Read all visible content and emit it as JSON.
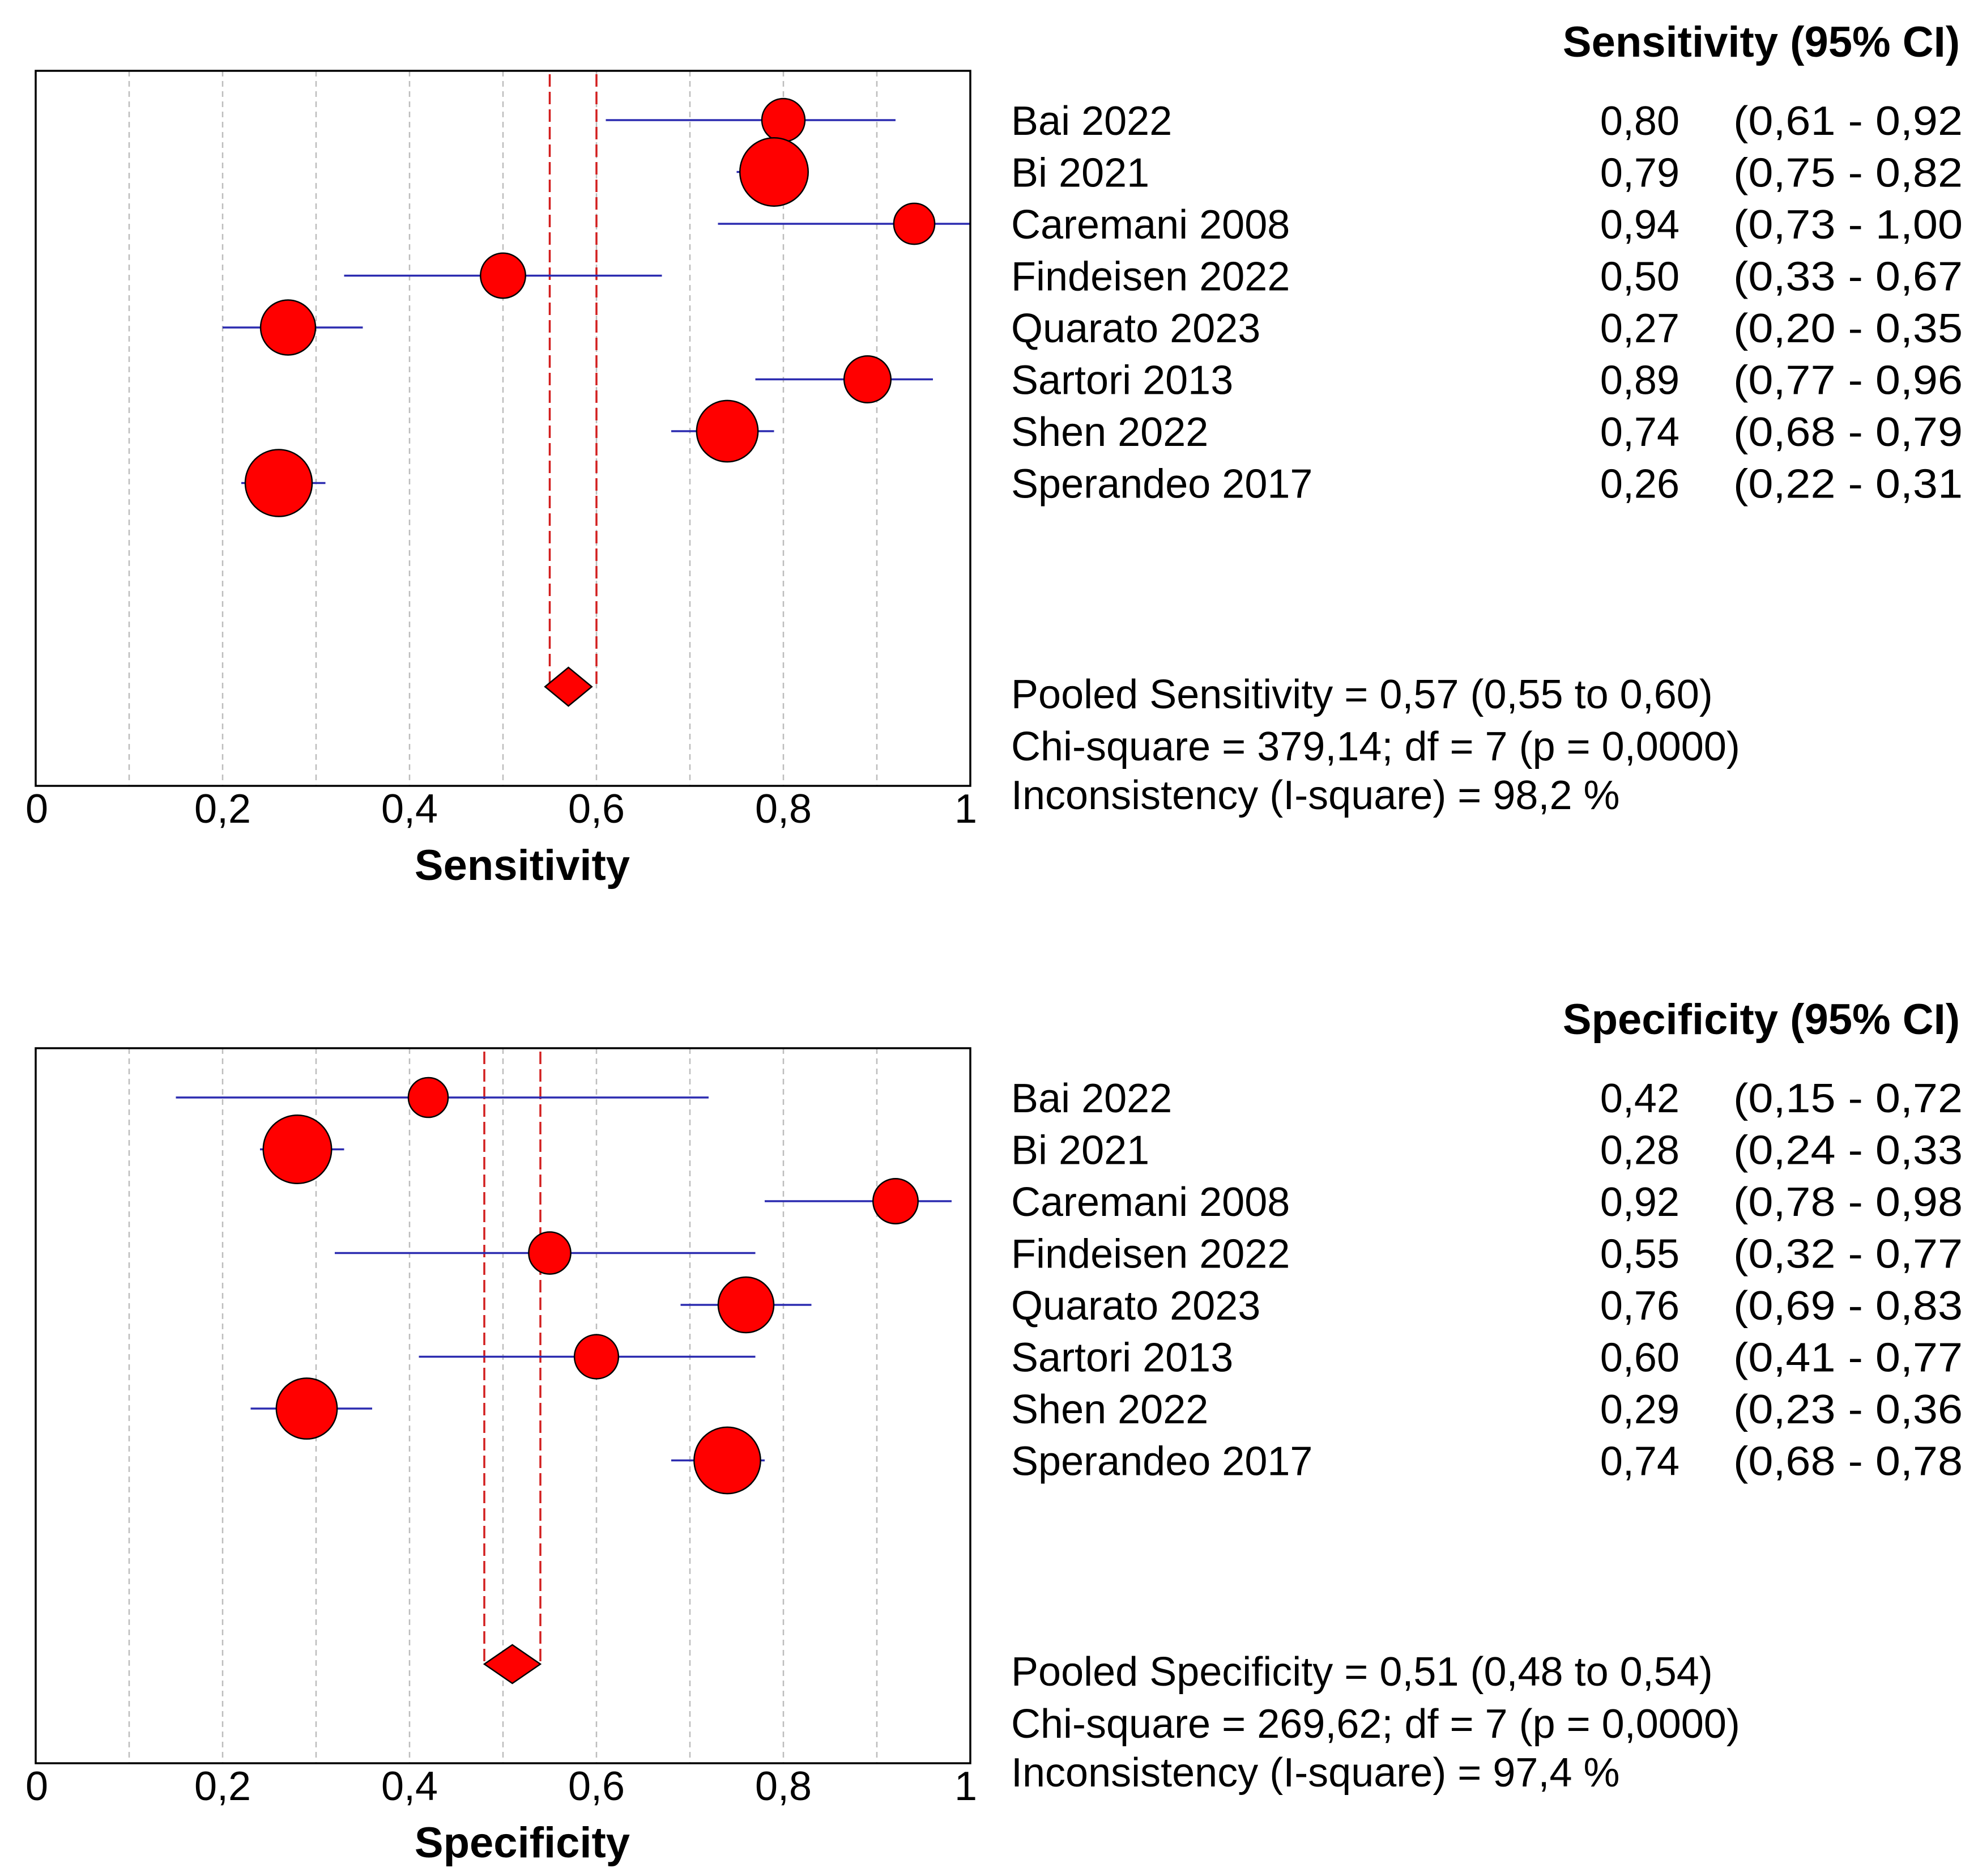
{
  "chart_data": [
    {
      "type": "forest",
      "xlabel": "Sensitivity",
      "xlim": [
        0,
        1
      ],
      "xticks": [
        "0",
        "0,2",
        "0,4",
        "0,6",
        "0,8",
        "1"
      ],
      "table_header": "Sensitivity (95% CI)",
      "studies": [
        {
          "name": "Bai 2022",
          "est": 0.8,
          "lo": 0.61,
          "hi": 0.92,
          "weight": 1,
          "est_label": "0,80",
          "ci_label": "(0,61 - 0,92"
        },
        {
          "name": "Bi 2021",
          "est": 0.79,
          "lo": 0.75,
          "hi": 0.82,
          "weight": 5,
          "est_label": "0,79",
          "ci_label": "(0,75 - 0,82"
        },
        {
          "name": "Caremani 2008",
          "est": 0.94,
          "lo": 0.73,
          "hi": 1.0,
          "weight": 0.8,
          "est_label": "0,94",
          "ci_label": "(0,73 - 1,00"
        },
        {
          "name": "Findeisen 2022",
          "est": 0.5,
          "lo": 0.33,
          "hi": 0.67,
          "weight": 1.2,
          "est_label": "0,50",
          "ci_label": "(0,33 - 0,67"
        },
        {
          "name": "Quarato 2023",
          "est": 0.27,
          "lo": 0.2,
          "hi": 0.35,
          "weight": 2.5,
          "est_label": "0,27",
          "ci_label": "(0,20 - 0,35"
        },
        {
          "name": "Sartori 2013",
          "est": 0.89,
          "lo": 0.77,
          "hi": 0.96,
          "weight": 1.4,
          "est_label": "0,89",
          "ci_label": "(0,77 - 0,96"
        },
        {
          "name": "Shen 2022",
          "est": 0.74,
          "lo": 0.68,
          "hi": 0.79,
          "weight": 3.6,
          "est_label": "0,74",
          "ci_label": "(0,68 - 0,79"
        },
        {
          "name": "Sperandeo 2017",
          "est": 0.26,
          "lo": 0.22,
          "hi": 0.31,
          "weight": 4.7,
          "est_label": "0,26",
          "ci_label": "(0,22 - 0,31"
        }
      ],
      "pooled": {
        "est": 0.57,
        "lo": 0.55,
        "hi": 0.6
      },
      "stats": [
        "Pooled Sensitivity = 0,57 (0,55 to 0,60)",
        "Chi-square = 379,14; df =  7 (p = 0,0000)",
        "Inconsistency (I-square) = 98,2 %"
      ]
    },
    {
      "type": "forest",
      "xlabel": "Specificity",
      "xlim": [
        0,
        1
      ],
      "xticks": [
        "0",
        "0,2",
        "0,4",
        "0,6",
        "0,8",
        "1"
      ],
      "table_header": "Specificity (95% CI)",
      "studies": [
        {
          "name": "Bai 2022",
          "est": 0.42,
          "lo": 0.15,
          "hi": 0.72,
          "weight": 0.7,
          "est_label": "0,42",
          "ci_label": "(0,15 - 0,72"
        },
        {
          "name": "Bi 2021",
          "est": 0.28,
          "lo": 0.24,
          "hi": 0.33,
          "weight": 5,
          "est_label": "0,28",
          "ci_label": "(0,24 - 0,33"
        },
        {
          "name": "Caremani 2008",
          "est": 0.92,
          "lo": 0.78,
          "hi": 0.98,
          "weight": 1.2,
          "est_label": "0,92",
          "ci_label": "(0,78 - 0,98"
        },
        {
          "name": "Findeisen 2022",
          "est": 0.55,
          "lo": 0.32,
          "hi": 0.77,
          "weight": 0.9,
          "est_label": "0,55",
          "ci_label": "(0,32 - 0,77"
        },
        {
          "name": "Quarato 2023",
          "est": 0.76,
          "lo": 0.69,
          "hi": 0.83,
          "weight": 2.6,
          "est_label": "0,76",
          "ci_label": "(0,69 - 0,83"
        },
        {
          "name": "Sartori 2013",
          "est": 0.6,
          "lo": 0.41,
          "hi": 0.77,
          "weight": 1.1,
          "est_label": "0,60",
          "ci_label": "(0,41 - 0,77"
        },
        {
          "name": "Shen 2022",
          "est": 0.29,
          "lo": 0.23,
          "hi": 0.36,
          "weight": 3.5,
          "est_label": "0,29",
          "ci_label": "(0,23 - 0,36"
        },
        {
          "name": "Sperandeo 2017",
          "est": 0.74,
          "lo": 0.68,
          "hi": 0.78,
          "weight": 4.6,
          "est_label": "0,74",
          "ci_label": "(0,68 - 0,78"
        }
      ],
      "pooled": {
        "est": 0.51,
        "lo": 0.48,
        "hi": 0.54
      },
      "stats": [
        "Pooled Specificity = 0,51 (0,48 to 0,54)",
        "Chi-square = 269,62; df =  7 (p = 0,0000)",
        "Inconsistency (I-square) = 97,4 %"
      ]
    }
  ],
  "colors": {
    "marker_fill": "#ff0000",
    "marker_stroke": "#000000",
    "ci_line": "#2b2bb0",
    "pooled_line": "#d21e1e",
    "grid": "#bdbdbd",
    "frame": "#000000"
  }
}
